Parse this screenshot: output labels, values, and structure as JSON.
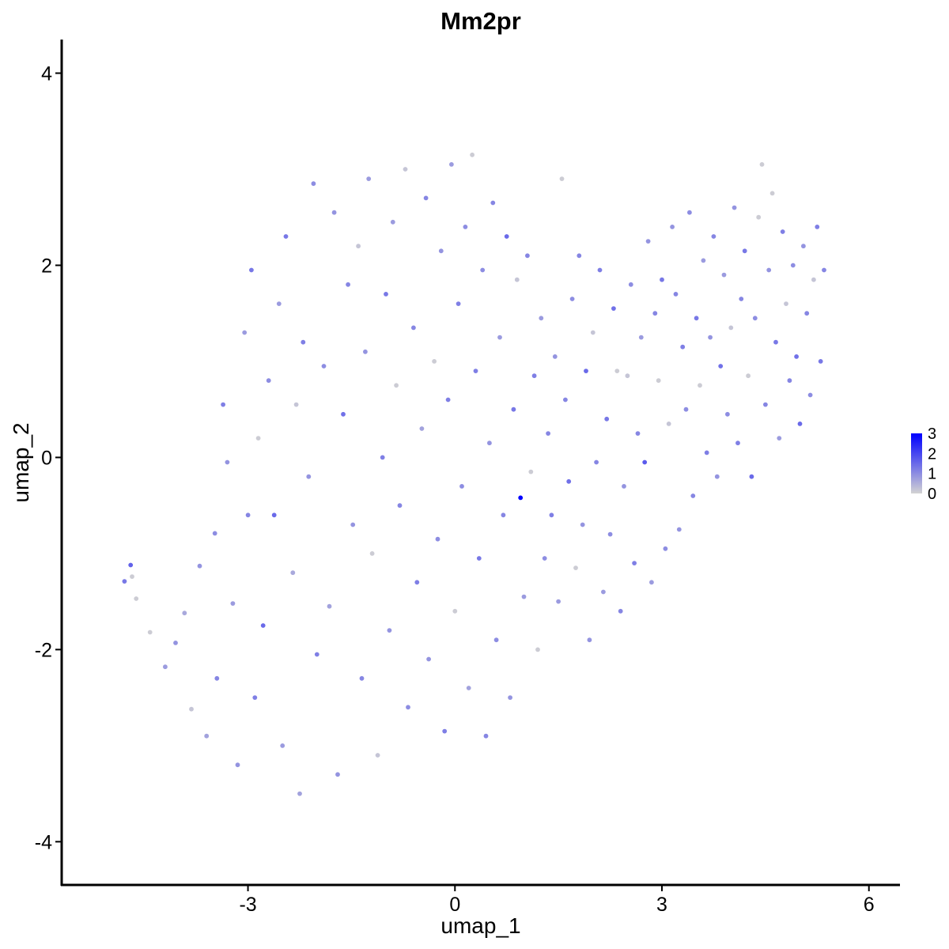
{
  "chart_data": {
    "type": "scatter",
    "title": "Mm2pr",
    "xlabel": "umap_1",
    "ylabel": "umap_2",
    "xlim": [
      -5.7,
      6.45
    ],
    "ylim": [
      -4.45,
      4.35
    ],
    "xticks": [
      -3,
      0,
      3,
      6
    ],
    "yticks": [
      -4,
      -2,
      0,
      2,
      4
    ],
    "xtick_labels": [
      "-3",
      "0",
      "3",
      "6"
    ],
    "ytick_labels": [
      "-4",
      "-2",
      "0",
      "2",
      "4"
    ],
    "grid": false,
    "legend": {
      "position": "right",
      "type": "colorbar",
      "range": [
        0,
        3
      ],
      "ticks": [
        0,
        1,
        2,
        3
      ],
      "tick_labels": [
        "0",
        "1",
        "2",
        "3"
      ],
      "low_color": "#d3d3d3",
      "high_color": "#0000ff"
    },
    "point_color_encoding": "expression level 0–3 mapped from light grey (#d3d3d3) to blue (#0000ff)",
    "points": [
      {
        "x": -4.79,
        "y": -1.29,
        "v": 1.3
      },
      {
        "x": -4.7,
        "y": -1.12,
        "v": 1.6
      },
      {
        "x": -4.68,
        "y": -1.24,
        "v": 0.1
      },
      {
        "x": -4.62,
        "y": -1.47,
        "v": 0.1
      },
      {
        "x": -4.42,
        "y": -1.82,
        "v": 0.1
      },
      {
        "x": -4.2,
        "y": -2.18,
        "v": 0.8
      },
      {
        "x": -4.05,
        "y": -1.93,
        "v": 0.9
      },
      {
        "x": -3.92,
        "y": -1.62,
        "v": 0.6
      },
      {
        "x": -3.82,
        "y": -2.62,
        "v": 0.2
      },
      {
        "x": -3.7,
        "y": -1.13,
        "v": 0.9
      },
      {
        "x": -3.6,
        "y": -2.9,
        "v": 0.7
      },
      {
        "x": -3.48,
        "y": -0.79,
        "v": 1.0
      },
      {
        "x": -3.45,
        "y": -2.3,
        "v": 1.1
      },
      {
        "x": -3.36,
        "y": 0.55,
        "v": 1.2
      },
      {
        "x": -3.3,
        "y": -0.05,
        "v": 0.9
      },
      {
        "x": -3.22,
        "y": -1.52,
        "v": 0.8
      },
      {
        "x": -3.15,
        "y": -3.2,
        "v": 0.9
      },
      {
        "x": -3.05,
        "y": 1.3,
        "v": 0.8
      },
      {
        "x": -3.0,
        "y": -0.6,
        "v": 1.1
      },
      {
        "x": -2.95,
        "y": 1.95,
        "v": 1.3
      },
      {
        "x": -2.9,
        "y": -2.5,
        "v": 1.2
      },
      {
        "x": -2.85,
        "y": 0.2,
        "v": 0.1
      },
      {
        "x": -2.78,
        "y": -1.75,
        "v": 1.5
      },
      {
        "x": -2.7,
        "y": 0.8,
        "v": 1.0
      },
      {
        "x": -2.62,
        "y": -0.6,
        "v": 1.5
      },
      {
        "x": -2.55,
        "y": 1.6,
        "v": 0.8
      },
      {
        "x": -2.5,
        "y": -3.0,
        "v": 0.8
      },
      {
        "x": -2.45,
        "y": 2.3,
        "v": 1.3
      },
      {
        "x": -2.35,
        "y": -1.2,
        "v": 0.6
      },
      {
        "x": -2.3,
        "y": 0.55,
        "v": 0.2
      },
      {
        "x": -2.25,
        "y": -3.5,
        "v": 0.7
      },
      {
        "x": -2.2,
        "y": 1.2,
        "v": 1.2
      },
      {
        "x": -2.12,
        "y": -0.2,
        "v": 0.9
      },
      {
        "x": -2.05,
        "y": 2.85,
        "v": 1.0
      },
      {
        "x": -2.0,
        "y": -2.05,
        "v": 1.2
      },
      {
        "x": -1.9,
        "y": 0.95,
        "v": 1.0
      },
      {
        "x": -1.82,
        "y": -1.55,
        "v": 0.7
      },
      {
        "x": -1.75,
        "y": 2.55,
        "v": 0.9
      },
      {
        "x": -1.7,
        "y": -3.3,
        "v": 0.9
      },
      {
        "x": -1.62,
        "y": 0.45,
        "v": 1.4
      },
      {
        "x": -1.55,
        "y": 1.8,
        "v": 1.1
      },
      {
        "x": -1.48,
        "y": -0.7,
        "v": 0.9
      },
      {
        "x": -1.4,
        "y": 2.2,
        "v": 0.2
      },
      {
        "x": -1.35,
        "y": -2.3,
        "v": 1.1
      },
      {
        "x": -1.3,
        "y": 1.1,
        "v": 0.9
      },
      {
        "x": -1.25,
        "y": 2.9,
        "v": 0.8
      },
      {
        "x": -1.2,
        "y": -1.0,
        "v": 0.1
      },
      {
        "x": -1.12,
        "y": -3.1,
        "v": 0.2
      },
      {
        "x": -1.05,
        "y": 0.0,
        "v": 1.2
      },
      {
        "x": -1.0,
        "y": 1.7,
        "v": 1.3
      },
      {
        "x": -0.95,
        "y": -1.8,
        "v": 0.9
      },
      {
        "x": -0.9,
        "y": 2.45,
        "v": 0.8
      },
      {
        "x": -0.85,
        "y": 0.75,
        "v": 0.1
      },
      {
        "x": -0.8,
        "y": -0.5,
        "v": 1.1
      },
      {
        "x": -0.72,
        "y": 3.0,
        "v": 0.2
      },
      {
        "x": -0.68,
        "y": -2.6,
        "v": 1.0
      },
      {
        "x": -0.6,
        "y": 1.35,
        "v": 1.1
      },
      {
        "x": -0.55,
        "y": -1.3,
        "v": 1.2
      },
      {
        "x": -0.48,
        "y": 0.3,
        "v": 0.7
      },
      {
        "x": -0.42,
        "y": 2.7,
        "v": 1.1
      },
      {
        "x": -0.38,
        "y": -2.1,
        "v": 0.9
      },
      {
        "x": -0.3,
        "y": 1.0,
        "v": 0.1
      },
      {
        "x": -0.25,
        "y": -0.85,
        "v": 1.0
      },
      {
        "x": -0.2,
        "y": 2.15,
        "v": 0.9
      },
      {
        "x": -0.15,
        "y": -2.85,
        "v": 1.2
      },
      {
        "x": -0.1,
        "y": 0.6,
        "v": 1.2
      },
      {
        "x": -0.05,
        "y": 3.05,
        "v": 0.8
      },
      {
        "x": 0.0,
        "y": -1.6,
        "v": 0.1
      },
      {
        "x": 0.05,
        "y": 1.6,
        "v": 1.2
      },
      {
        "x": 0.1,
        "y": -0.3,
        "v": 1.0
      },
      {
        "x": 0.15,
        "y": 2.4,
        "v": 1.0
      },
      {
        "x": 0.2,
        "y": -2.4,
        "v": 0.7
      },
      {
        "x": 0.25,
        "y": 3.15,
        "v": 0.1
      },
      {
        "x": 0.3,
        "y": 0.9,
        "v": 1.2
      },
      {
        "x": 0.35,
        "y": -1.05,
        "v": 1.3
      },
      {
        "x": 0.4,
        "y": 1.95,
        "v": 1.0
      },
      {
        "x": 0.45,
        "y": -2.9,
        "v": 1.1
      },
      {
        "x": 0.5,
        "y": 0.15,
        "v": 0.9
      },
      {
        "x": 0.55,
        "y": 2.65,
        "v": 1.1
      },
      {
        "x": 0.6,
        "y": -1.9,
        "v": 1.0
      },
      {
        "x": 0.65,
        "y": 1.25,
        "v": 0.8
      },
      {
        "x": 0.7,
        "y": -0.6,
        "v": 1.1
      },
      {
        "x": 0.75,
        "y": 2.3,
        "v": 1.5
      },
      {
        "x": 0.8,
        "y": -2.5,
        "v": 0.9
      },
      {
        "x": 0.85,
        "y": 0.5,
        "v": 1.3
      },
      {
        "x": 0.9,
        "y": 1.85,
        "v": 0.2
      },
      {
        "x": 0.95,
        "y": -0.42,
        "v": 3.0
      },
      {
        "x": 1.0,
        "y": -1.45,
        "v": 0.8
      },
      {
        "x": 1.05,
        "y": 2.1,
        "v": 1.1
      },
      {
        "x": 1.1,
        "y": -0.15,
        "v": 0.1
      },
      {
        "x": 1.15,
        "y": 0.85,
        "v": 1.2
      },
      {
        "x": 1.2,
        "y": -2.0,
        "v": 0.1
      },
      {
        "x": 1.25,
        "y": 1.45,
        "v": 0.8
      },
      {
        "x": 1.3,
        "y": -1.05,
        "v": 1.0
      },
      {
        "x": 1.35,
        "y": 0.25,
        "v": 1.1
      },
      {
        "x": 1.4,
        "y": -0.6,
        "v": 1.2
      },
      {
        "x": 1.45,
        "y": 1.05,
        "v": 0.9
      },
      {
        "x": 1.5,
        "y": -1.5,
        "v": 0.8
      },
      {
        "x": 1.55,
        "y": 2.9,
        "v": 0.1
      },
      {
        "x": 1.6,
        "y": 0.6,
        "v": 1.1
      },
      {
        "x": 1.65,
        "y": -0.25,
        "v": 1.4
      },
      {
        "x": 1.7,
        "y": 1.65,
        "v": 1.0
      },
      {
        "x": 1.75,
        "y": -1.15,
        "v": 0.1
      },
      {
        "x": 1.8,
        "y": 2.1,
        "v": 1.1
      },
      {
        "x": 1.85,
        "y": -0.7,
        "v": 0.9
      },
      {
        "x": 1.9,
        "y": 0.9,
        "v": 1.5
      },
      {
        "x": 1.95,
        "y": -1.9,
        "v": 0.9
      },
      {
        "x": 2.0,
        "y": 1.3,
        "v": 0.2
      },
      {
        "x": 2.05,
        "y": -0.05,
        "v": 1.1
      },
      {
        "x": 2.1,
        "y": 1.95,
        "v": 1.2
      },
      {
        "x": 2.15,
        "y": -1.4,
        "v": 0.8
      },
      {
        "x": 2.2,
        "y": 0.4,
        "v": 1.3
      },
      {
        "x": 2.25,
        "y": -0.8,
        "v": 1.0
      },
      {
        "x": 2.3,
        "y": 1.55,
        "v": 1.4
      },
      {
        "x": 2.35,
        "y": 0.9,
        "v": 0.1
      },
      {
        "x": 2.4,
        "y": -1.6,
        "v": 1.1
      },
      {
        "x": 2.45,
        "y": -0.3,
        "v": 0.9
      },
      {
        "x": 2.5,
        "y": 0.85,
        "v": 0.2
      },
      {
        "x": 2.55,
        "y": 1.8,
        "v": 1.0
      },
      {
        "x": 2.6,
        "y": -1.1,
        "v": 1.2
      },
      {
        "x": 2.65,
        "y": 0.25,
        "v": 1.1
      },
      {
        "x": 2.7,
        "y": 1.25,
        "v": 0.8
      },
      {
        "x": 2.75,
        "y": -0.05,
        "v": 1.7
      },
      {
        "x": 2.8,
        "y": 2.25,
        "v": 0.9
      },
      {
        "x": 2.85,
        "y": -1.3,
        "v": 0.8
      },
      {
        "x": 2.9,
        "y": 1.5,
        "v": 1.1
      },
      {
        "x": 2.95,
        "y": 0.8,
        "v": 0.1
      },
      {
        "x": 3.0,
        "y": 1.85,
        "v": 1.3
      },
      {
        "x": 3.05,
        "y": -0.95,
        "v": 1.0
      },
      {
        "x": 3.1,
        "y": 0.35,
        "v": 0.2
      },
      {
        "x": 3.15,
        "y": 2.4,
        "v": 0.9
      },
      {
        "x": 3.2,
        "y": 1.7,
        "v": 1.1
      },
      {
        "x": 3.25,
        "y": -0.75,
        "v": 0.9
      },
      {
        "x": 3.3,
        "y": 1.15,
        "v": 1.2
      },
      {
        "x": 3.35,
        "y": 0.5,
        "v": 1.0
      },
      {
        "x": 3.4,
        "y": 2.55,
        "v": 1.0
      },
      {
        "x": 3.45,
        "y": -0.4,
        "v": 1.1
      },
      {
        "x": 3.5,
        "y": 1.45,
        "v": 1.3
      },
      {
        "x": 3.55,
        "y": 0.75,
        "v": 0.1
      },
      {
        "x": 3.6,
        "y": 2.05,
        "v": 0.8
      },
      {
        "x": 3.65,
        "y": 0.05,
        "v": 1.2
      },
      {
        "x": 3.7,
        "y": 1.25,
        "v": 0.9
      },
      {
        "x": 3.75,
        "y": 2.3,
        "v": 1.1
      },
      {
        "x": 3.8,
        "y": -0.2,
        "v": 0.9
      },
      {
        "x": 3.85,
        "y": 0.95,
        "v": 1.4
      },
      {
        "x": 3.9,
        "y": 1.9,
        "v": 0.8
      },
      {
        "x": 3.95,
        "y": 0.45,
        "v": 1.0
      },
      {
        "x": 4.0,
        "y": 1.35,
        "v": 0.2
      },
      {
        "x": 4.05,
        "y": 2.6,
        "v": 0.9
      },
      {
        "x": 4.1,
        "y": 0.15,
        "v": 1.2
      },
      {
        "x": 4.15,
        "y": 1.65,
        "v": 1.1
      },
      {
        "x": 4.2,
        "y": 2.15,
        "v": 1.3
      },
      {
        "x": 4.25,
        "y": 0.85,
        "v": 0.1
      },
      {
        "x": 4.3,
        "y": -0.2,
        "v": 1.5
      },
      {
        "x": 4.35,
        "y": 1.45,
        "v": 1.0
      },
      {
        "x": 4.4,
        "y": 2.5,
        "v": 0.1
      },
      {
        "x": 4.45,
        "y": 3.05,
        "v": 0.1
      },
      {
        "x": 4.5,
        "y": 0.55,
        "v": 1.1
      },
      {
        "x": 4.55,
        "y": 1.95,
        "v": 0.9
      },
      {
        "x": 4.6,
        "y": 2.75,
        "v": 0.1
      },
      {
        "x": 4.65,
        "y": 1.2,
        "v": 1.3
      },
      {
        "x": 4.7,
        "y": 0.2,
        "v": 0.8
      },
      {
        "x": 4.75,
        "y": 2.35,
        "v": 1.2
      },
      {
        "x": 4.8,
        "y": 1.6,
        "v": 0.2
      },
      {
        "x": 4.85,
        "y": 0.8,
        "v": 1.1
      },
      {
        "x": 4.9,
        "y": 2.0,
        "v": 1.0
      },
      {
        "x": 4.95,
        "y": 1.05,
        "v": 1.4
      },
      {
        "x": 5.0,
        "y": 0.35,
        "v": 1.5
      },
      {
        "x": 5.05,
        "y": 2.2,
        "v": 0.9
      },
      {
        "x": 5.1,
        "y": 1.5,
        "v": 1.1
      },
      {
        "x": 5.15,
        "y": 0.65,
        "v": 1.0
      },
      {
        "x": 5.2,
        "y": 1.85,
        "v": 0.2
      },
      {
        "x": 5.25,
        "y": 2.4,
        "v": 1.2
      },
      {
        "x": 5.3,
        "y": 1.0,
        "v": 1.3
      },
      {
        "x": 5.35,
        "y": 1.95,
        "v": 1.1
      }
    ]
  }
}
